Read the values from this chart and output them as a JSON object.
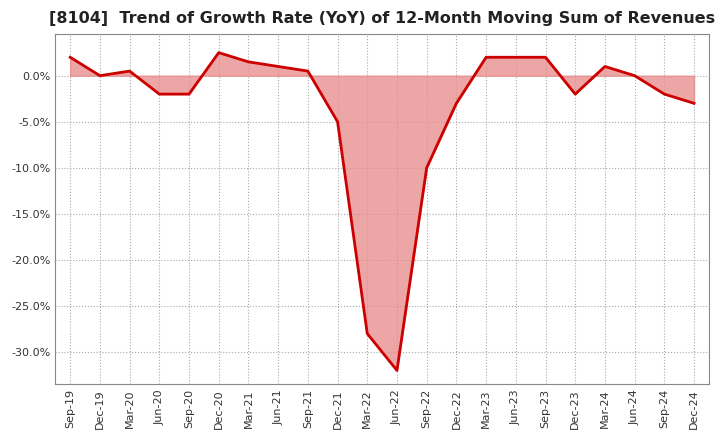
{
  "title": "[8104]  Trend of Growth Rate (YoY) of 12-Month Moving Sum of Revenues",
  "title_fontsize": 11.5,
  "background_color": "#ffffff",
  "grid_color": "#aaaaaa",
  "line_color": "#cc0000",
  "fill_color": "#e88888",
  "ylim": [
    -0.335,
    0.045
  ],
  "yticks": [
    0.0,
    -0.05,
    -0.1,
    -0.15,
    -0.2,
    -0.25,
    -0.3
  ],
  "x_labels": [
    "Sep-19",
    "Dec-19",
    "Mar-20",
    "Jun-20",
    "Sep-20",
    "Dec-20",
    "Mar-21",
    "Jun-21",
    "Sep-21",
    "Dec-21",
    "Mar-22",
    "Jun-22",
    "Sep-22",
    "Dec-22",
    "Mar-23",
    "Jun-23",
    "Sep-23",
    "Dec-23",
    "Mar-24",
    "Jun-24",
    "Sep-24",
    "Dec-24"
  ],
  "values": [
    0.02,
    0.0,
    0.005,
    -0.02,
    -0.02,
    0.025,
    0.015,
    0.01,
    0.005,
    -0.05,
    -0.28,
    -0.32,
    -0.1,
    -0.03,
    0.02,
    0.02,
    0.02,
    -0.02,
    0.01,
    0.0,
    -0.02,
    -0.03
  ]
}
